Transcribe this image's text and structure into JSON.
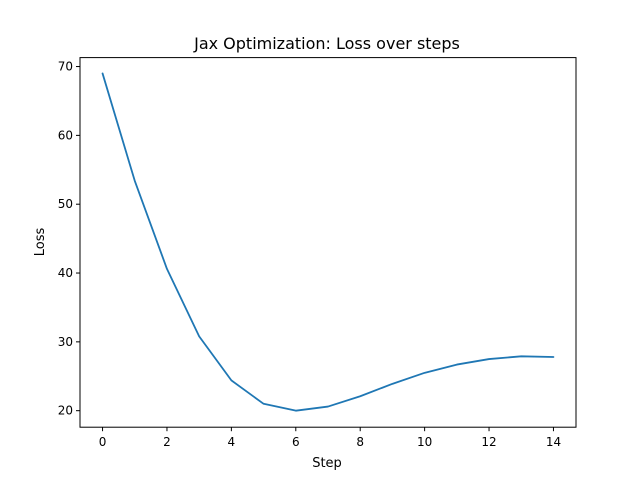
{
  "chart_data": {
    "type": "line",
    "title": "Jax Optimization: Loss over steps",
    "xlabel": "Step",
    "ylabel": "Loss",
    "xlim": [
      -0.7,
      14.7
    ],
    "ylim": [
      17.6,
      71.3
    ],
    "xticks": [
      0,
      2,
      4,
      6,
      8,
      10,
      12,
      14
    ],
    "yticks": [
      20,
      30,
      40,
      50,
      60,
      70
    ],
    "grid": false,
    "series": [
      {
        "color": "#1f77b4",
        "x": [
          0,
          1,
          2,
          3,
          4,
          5,
          6,
          7,
          8,
          9,
          10,
          11,
          12,
          13,
          14
        ],
        "y": [
          69.0,
          53.4,
          40.6,
          30.8,
          24.4,
          21.0,
          20.0,
          20.6,
          22.1,
          23.9,
          25.5,
          26.7,
          27.5,
          27.9,
          27.8
        ]
      }
    ]
  }
}
